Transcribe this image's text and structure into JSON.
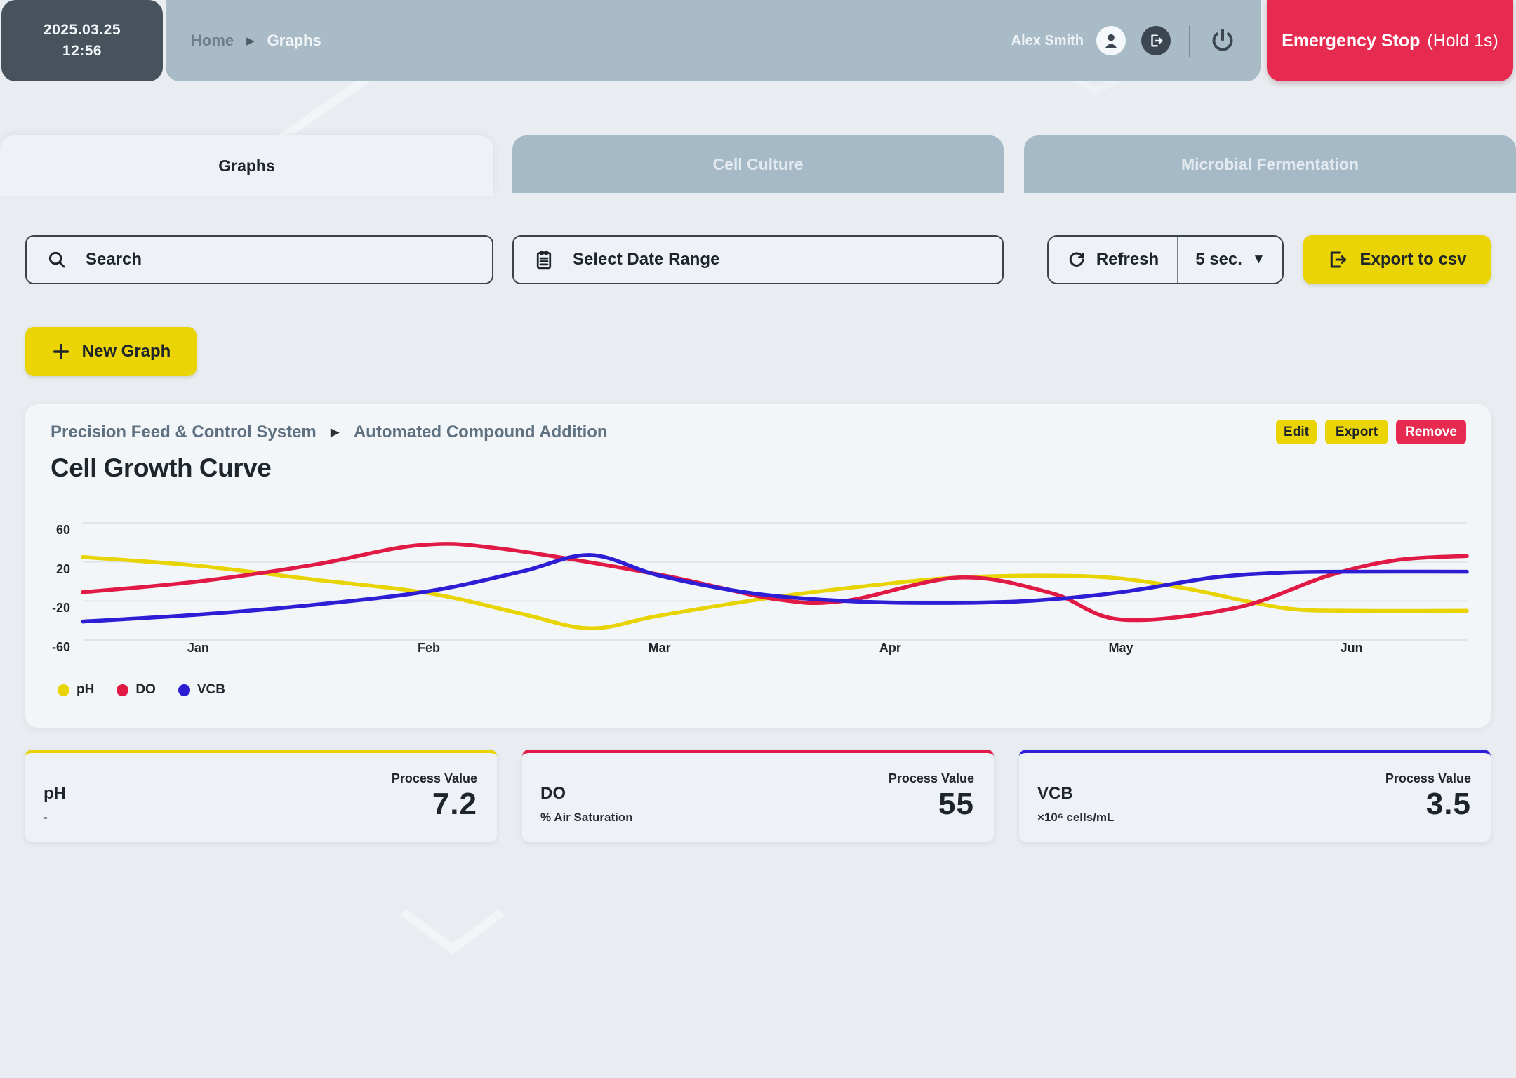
{
  "topbar": {
    "datetime": {
      "date": "2025.03.25",
      "time": "12:56"
    },
    "breadcrumb": {
      "home": "Home",
      "current": "Graphs"
    },
    "user": {
      "name": "Alex Smith"
    },
    "emergency_stop": {
      "label": "Emergency Stop",
      "suffix": "(Hold 1s)"
    }
  },
  "tabs": [
    {
      "label": "Graphs",
      "active": true
    },
    {
      "label": "Cell Culture",
      "active": false
    },
    {
      "label": "Microbial Fermentation",
      "active": false
    }
  ],
  "filters": {
    "search_placeholder": "Search",
    "date_range_placeholder": "Select Date Range",
    "refresh_label": "Refresh",
    "refresh_interval": "5 sec.",
    "export_label": "Export to csv"
  },
  "actions": {
    "new_graph_label": "New Graph"
  },
  "graph_card": {
    "breadcrumb": {
      "parent": "Precision Feed & Control System",
      "child": "Automated Compound Addition"
    },
    "title": "Cell Growth Curve",
    "buttons": {
      "edit": "Edit",
      "export": "Export",
      "remove": "Remove"
    }
  },
  "chart_data": {
    "type": "line",
    "title": "Cell Growth Curve",
    "x_ticks": [
      "Jan",
      "Feb",
      "Mar",
      "Apr",
      "May",
      "Jun"
    ],
    "y_ticks": [
      60,
      20,
      -20,
      -60
    ],
    "ylim": [
      -75,
      75
    ],
    "xlim_months": [
      -0.5,
      5.5
    ],
    "grid": true,
    "legend_position": "bottom-left",
    "series": [
      {
        "name": "pH",
        "color": "#e8d303",
        "points": [
          [
            -0.5,
            25
          ],
          [
            0,
            16
          ],
          [
            0.5,
            2
          ],
          [
            1,
            -12
          ],
          [
            1.4,
            -33
          ],
          [
            1.7,
            -48
          ],
          [
            2,
            -35
          ],
          [
            2.5,
            -16
          ],
          [
            3,
            -2
          ],
          [
            3.3,
            4
          ],
          [
            3.7,
            6
          ],
          [
            4,
            3
          ],
          [
            4.3,
            -8
          ],
          [
            4.7,
            -27
          ],
          [
            5,
            -30
          ],
          [
            5.5,
            -30
          ]
        ]
      },
      {
        "name": "DO",
        "color": "#e01945",
        "points": [
          [
            -0.5,
            -11
          ],
          [
            0,
            0
          ],
          [
            0.5,
            17
          ],
          [
            0.95,
            37
          ],
          [
            1.3,
            34
          ],
          [
            2,
            7
          ],
          [
            2.5,
            -18
          ],
          [
            2.8,
            -20
          ],
          [
            3.3,
            4
          ],
          [
            3.7,
            -12
          ],
          [
            4,
            -39
          ],
          [
            4.5,
            -27
          ],
          [
            4.9,
            6
          ],
          [
            5.2,
            22
          ],
          [
            5.5,
            26
          ]
        ]
      },
      {
        "name": "VCB",
        "color": "#2d1ed6",
        "points": [
          [
            -0.5,
            -41
          ],
          [
            0,
            -34
          ],
          [
            0.5,
            -24
          ],
          [
            1,
            -10
          ],
          [
            1.4,
            10
          ],
          [
            1.7,
            27
          ],
          [
            2,
            6
          ],
          [
            2.4,
            -12
          ],
          [
            2.8,
            -20
          ],
          [
            3.2,
            -22
          ],
          [
            3.6,
            -20
          ],
          [
            4,
            -11
          ],
          [
            4.4,
            4
          ],
          [
            4.7,
            9
          ],
          [
            5,
            10
          ],
          [
            5.5,
            10
          ]
        ]
      }
    ]
  },
  "value_cards": [
    {
      "name": "pH",
      "unit": "-",
      "label": "Process Value",
      "value": "7.2",
      "accent": "#e8d303"
    },
    {
      "name": "DO",
      "unit": "% Air Saturation",
      "label": "Process Value",
      "value": "55",
      "accent": "#e01945"
    },
    {
      "name": "VCB",
      "unit": "×10⁶ cells/mL",
      "label": "Process Value",
      "value": "3.5",
      "accent": "#2d1ed6"
    }
  ],
  "colors": {
    "topbar": "#a9bbc7",
    "badge": "#47525d",
    "emergency": "#e72a4f",
    "accent_yellow": "#ead406",
    "danger_red": "#e72a4f",
    "page_bg": "#e9edf1",
    "card_bg": "#f3f6f9",
    "grid_line": "#e0e5ea"
  }
}
